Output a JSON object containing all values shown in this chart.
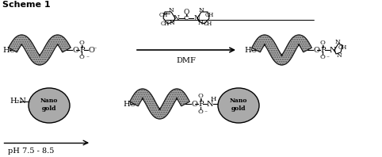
{
  "title": "Scheme 1",
  "background": "#ffffff",
  "strand_color": "#aaaaaa",
  "strand_edge": "#000000",
  "nanogold_fill": "#aaaaaa",
  "nanogold_edge": "#000000",
  "dmf_label": "DMF",
  "ph_label": "pH 7.5 - 8.5",
  "fig_width": 4.82,
  "fig_height": 1.98,
  "dpi": 100
}
